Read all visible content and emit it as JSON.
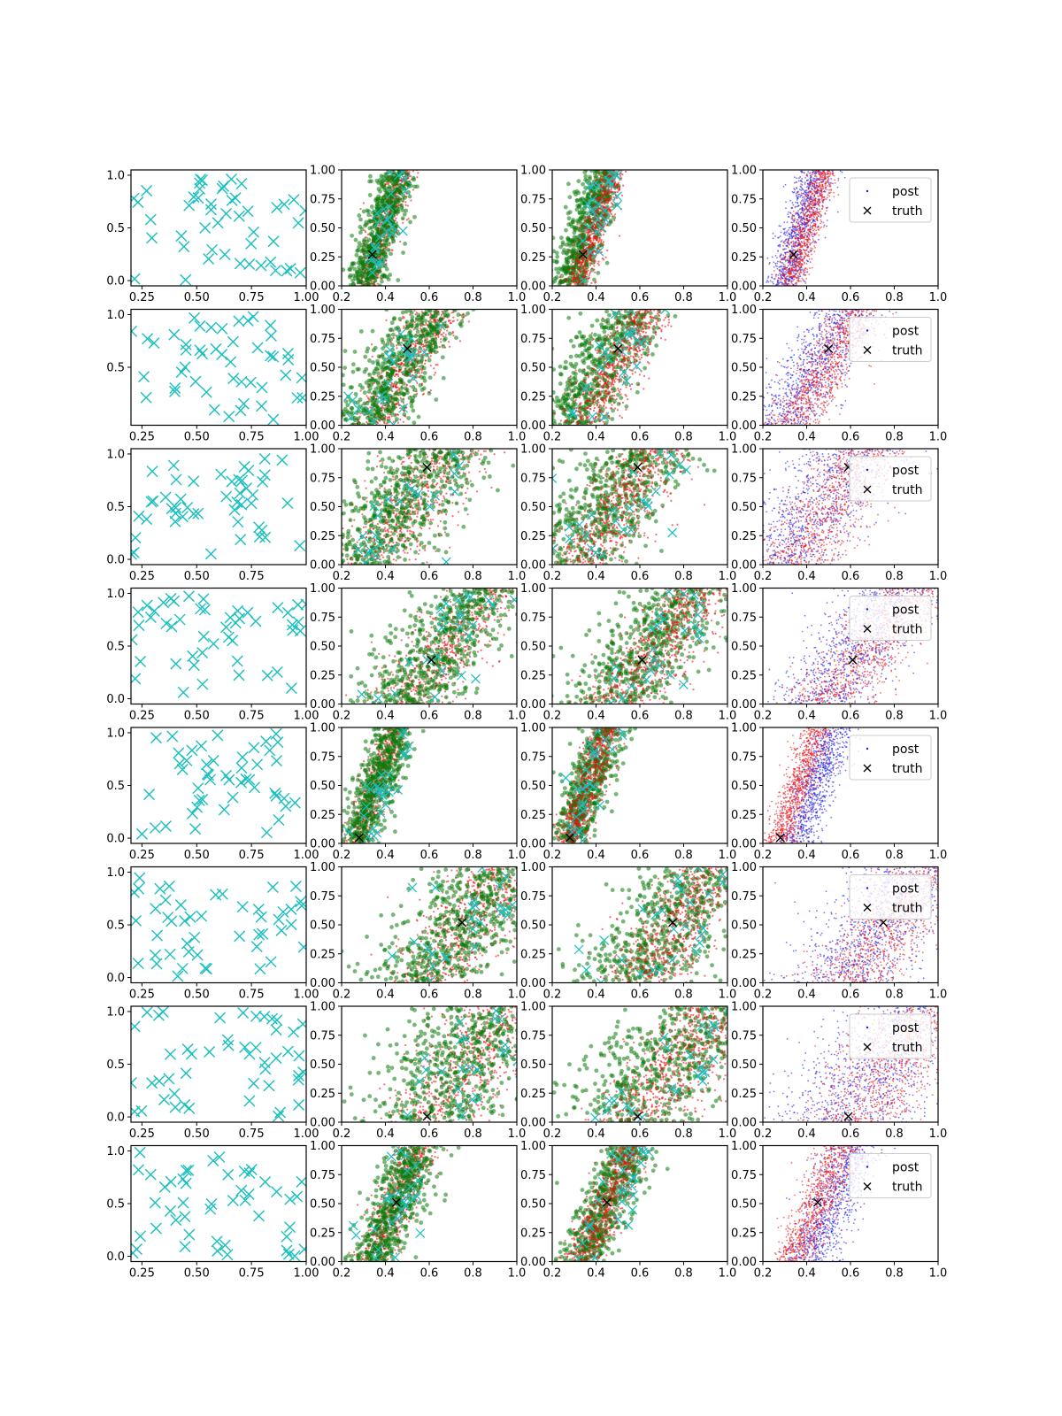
{
  "colors": {
    "background": "#ffffff",
    "axes": "#000000",
    "prior_marker": "#17bfbf",
    "posterior_green": "#0a7a0a",
    "posterior_red": "#ee1111",
    "posterior_blue": "#1a1aee",
    "truth_marker": "#000000"
  },
  "legend": {
    "post_label": "post",
    "truth_label": "truth"
  },
  "chart_data": {
    "type": "scatter",
    "layout": "8 rows x 4 columns of scatter subplots",
    "column_kinds": [
      "prior samples",
      "posterior (green over red, cyan x)",
      "posterior (green and red, cyan x)",
      "posterior (blue and red) with legend"
    ],
    "prior_x_ticks_default": [
      "0.25",
      "0.50",
      "0.75",
      "1.00"
    ],
    "prior_x_ticks_row3": [
      "0.25",
      "0.50",
      "0.75"
    ],
    "posterior_x_ticks": [
      "0.2",
      "0.4",
      "0.6",
      "0.8",
      "1.0"
    ],
    "posterior_y_ticks": [
      "0.00",
      "0.25",
      "0.50",
      "0.75",
      "1.00"
    ],
    "prior_y_ticks_short": [
      "0.5",
      "1.0"
    ],
    "prior_y_ticks_long": [
      "0.0",
      "0.5",
      "1.0"
    ],
    "prior_xlim": [
      0.2,
      1.0
    ],
    "prior_ylim": [
      -0.05,
      1.05
    ],
    "posterior_xlim": [
      0.2,
      1.0
    ],
    "posterior_ylim": [
      0.0,
      1.0
    ],
    "rows": [
      {
        "truth": [
          0.34,
          0.27
        ],
        "slope": 0.16,
        "spread": 0.09,
        "red_shift": 0.02,
        "blue_shift": -0.01
      },
      {
        "truth": [
          0.5,
          0.66
        ],
        "slope": 0.3,
        "spread": 0.18,
        "red_shift": 0.04,
        "blue_shift": -0.02
      },
      {
        "truth": [
          0.59,
          0.84
        ],
        "slope": 0.35,
        "spread": 0.28,
        "red_shift": 0.03,
        "blue_shift": -0.02
      },
      {
        "truth": [
          0.61,
          0.38
        ],
        "slope": 0.38,
        "spread": 0.27,
        "red_shift": 0.03,
        "blue_shift": -0.03
      },
      {
        "truth": [
          0.28,
          0.05
        ],
        "slope": 0.18,
        "spread": 0.1,
        "red_shift": 0.0,
        "blue_shift": 0.08
      },
      {
        "truth": [
          0.75,
          0.52
        ],
        "slope": 0.35,
        "spread": 0.3,
        "red_shift": 0.03,
        "blue_shift": -0.03
      },
      {
        "truth": [
          0.59,
          0.05
        ],
        "slope": 0.35,
        "spread": 0.35,
        "red_shift": 0.04,
        "blue_shift": -0.03
      },
      {
        "truth": [
          0.45,
          0.51
        ],
        "slope": 0.22,
        "spread": 0.13,
        "red_shift": 0.0,
        "blue_shift": 0.07
      }
    ]
  }
}
